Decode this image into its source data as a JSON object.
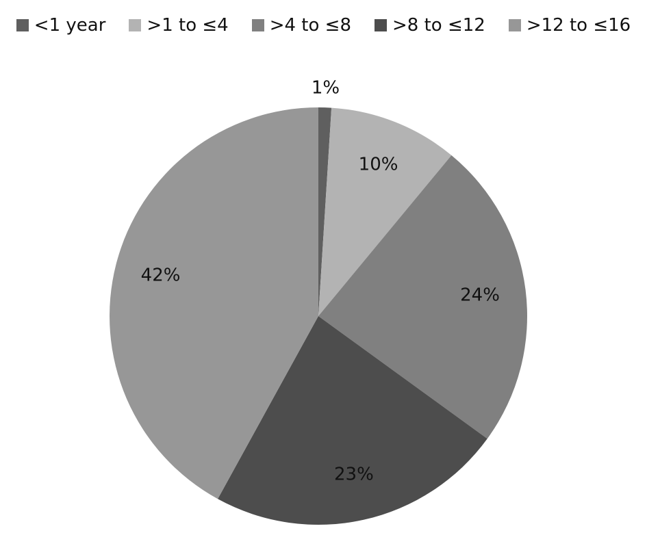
{
  "chart_data": {
    "type": "pie",
    "categories": [
      "<1 year",
      ">1 to ≤4",
      ">4 to ≤8",
      ">8 to ≤12",
      ">12 to ≤16"
    ],
    "values": [
      1,
      10,
      24,
      23,
      42
    ],
    "value_labels": [
      "1%",
      "10%",
      "24%",
      "23%",
      "42%"
    ],
    "colors": [
      "#5f5f5f",
      "#b3b3b3",
      "#808080",
      "#4d4d4d",
      "#979797"
    ],
    "legend": "top"
  }
}
